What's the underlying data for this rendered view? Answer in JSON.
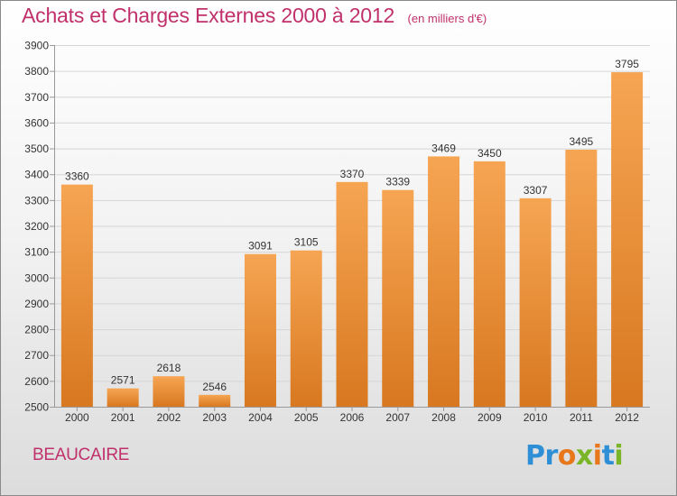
{
  "header": {
    "title": "Achats et Charges Externes 2000 à 2012",
    "unit": "(en milliers d'€)"
  },
  "footer": {
    "commune": "BEAUCAIRE",
    "logo": {
      "letters": [
        "P",
        "r",
        "o",
        "x",
        "i",
        "t",
        "i"
      ],
      "colors": [
        "#2f8fd6",
        "#2f8fd6",
        "#e8761b",
        "#7ab528",
        "#e8761b",
        "#2f8fd6",
        "#7ab528"
      ]
    }
  },
  "colors": {
    "title": "#c0306b",
    "bar_light": "#f6a553",
    "bar_dark": "#d87820",
    "grid": "#d6d6d6",
    "axis_text": "#333333"
  },
  "chart_data": {
    "type": "bar",
    "categories": [
      "2000",
      "2001",
      "2002",
      "2003",
      "2004",
      "2005",
      "2006",
      "2007",
      "2008",
      "2009",
      "2010",
      "2011",
      "2012"
    ],
    "values": [
      3360,
      2571,
      2618,
      2546,
      3091,
      3105,
      3370,
      3339,
      3469,
      3450,
      3307,
      3495,
      3795
    ],
    "title": "Achats et Charges Externes 2000 à 2012",
    "subtitle": "(en milliers d'€)",
    "xlabel": "",
    "ylabel": "",
    "ylim": [
      2500,
      3900
    ],
    "yticks": [
      2500,
      2600,
      2700,
      2800,
      2900,
      3000,
      3100,
      3200,
      3300,
      3400,
      3500,
      3600,
      3700,
      3800,
      3900
    ],
    "grid": true,
    "legend": "none"
  }
}
